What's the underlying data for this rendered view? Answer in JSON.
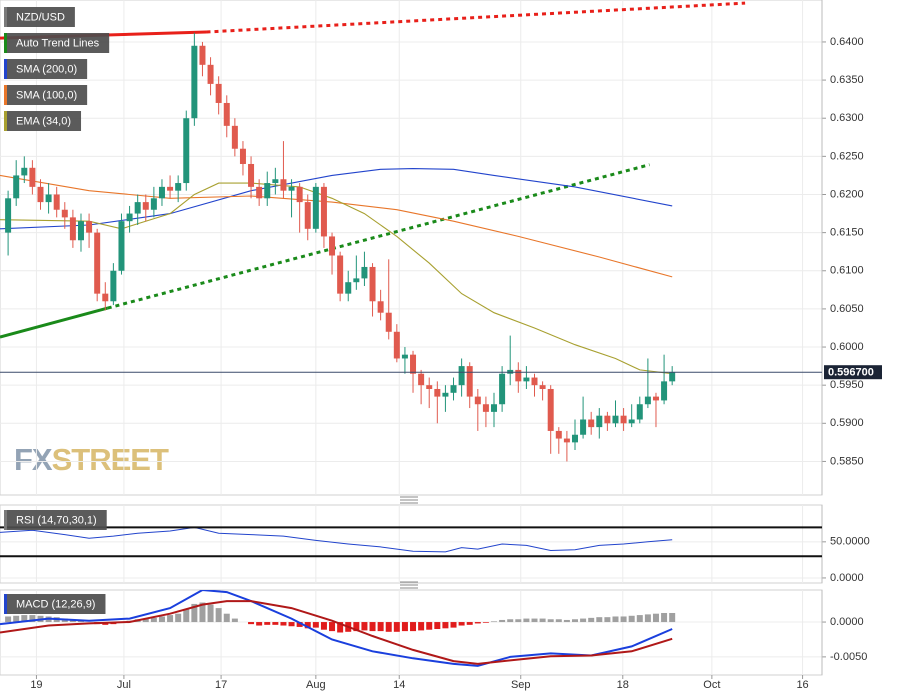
{
  "watermark": [
    "FX",
    "STREET"
  ],
  "chart_data": [
    {
      "type": "candlestick",
      "name": "NZD/USD",
      "legend_color": "#7a7a7a",
      "up_color": "#22947a",
      "down_color": "#e05a4e",
      "open": [
        0.615,
        0.6195,
        0.6225,
        0.6235,
        0.621,
        0.619,
        0.62,
        0.618,
        0.617,
        0.614,
        0.6165,
        0.615,
        0.607,
        0.606,
        0.61,
        0.6165,
        0.6175,
        0.619,
        0.618,
        0.6195,
        0.621,
        0.6205,
        0.6215,
        0.63,
        0.6395,
        0.637,
        0.6345,
        0.632,
        0.629,
        0.626,
        0.624,
        0.621,
        0.6195,
        0.6215,
        0.622,
        0.6205,
        0.621,
        0.619,
        0.6155,
        0.621,
        0.6145,
        0.612,
        0.607,
        0.6085,
        0.609,
        0.6105,
        0.606,
        0.6045,
        0.602,
        0.5985,
        0.599,
        0.5965,
        0.595,
        0.5945,
        0.5935,
        0.594,
        0.595,
        0.5975,
        0.5935,
        0.5925,
        0.5915,
        0.5925,
        0.5965,
        0.597,
        0.5955,
        0.596,
        0.595,
        0.5945,
        0.589,
        0.588,
        0.5875,
        0.5885,
        0.5905,
        0.5895,
        0.591,
        0.59,
        0.591,
        0.59,
        0.5905,
        0.5925,
        0.5935,
        0.593,
        0.5955
      ],
      "high": [
        0.6205,
        0.6245,
        0.625,
        0.6245,
        0.622,
        0.6215,
        0.621,
        0.619,
        0.618,
        0.6175,
        0.6175,
        0.6155,
        0.6085,
        0.611,
        0.6175,
        0.6185,
        0.62,
        0.62,
        0.621,
        0.622,
        0.6225,
        0.6225,
        0.631,
        0.6412,
        0.64,
        0.638,
        0.6355,
        0.633,
        0.63,
        0.627,
        0.625,
        0.622,
        0.623,
        0.6235,
        0.627,
        0.622,
        0.6215,
        0.62,
        0.6215,
        0.6215,
        0.615,
        0.6125,
        0.61,
        0.612,
        0.6125,
        0.611,
        0.6075,
        0.6115,
        0.603,
        0.6,
        0.5995,
        0.597,
        0.596,
        0.5955,
        0.595,
        0.596,
        0.5985,
        0.598,
        0.5945,
        0.5935,
        0.594,
        0.5975,
        0.6015,
        0.598,
        0.5975,
        0.5965,
        0.5955,
        0.595,
        0.5895,
        0.589,
        0.5905,
        0.5935,
        0.5915,
        0.592,
        0.5915,
        0.593,
        0.592,
        0.5925,
        0.5935,
        0.5985,
        0.594,
        0.599,
        0.5975
      ],
      "low": [
        0.612,
        0.6185,
        0.6215,
        0.62,
        0.618,
        0.6175,
        0.617,
        0.6155,
        0.613,
        0.6125,
        0.613,
        0.606,
        0.6048,
        0.6055,
        0.6095,
        0.615,
        0.616,
        0.6165,
        0.617,
        0.6185,
        0.6195,
        0.619,
        0.6205,
        0.629,
        0.6355,
        0.633,
        0.6305,
        0.6275,
        0.625,
        0.6225,
        0.6195,
        0.6185,
        0.6185,
        0.62,
        0.6195,
        0.617,
        0.615,
        0.614,
        0.615,
        0.613,
        0.6095,
        0.606,
        0.606,
        0.6075,
        0.608,
        0.604,
        0.6035,
        0.601,
        0.598,
        0.5965,
        0.594,
        0.5925,
        0.592,
        0.59,
        0.5915,
        0.593,
        0.5935,
        0.592,
        0.589,
        0.5895,
        0.5895,
        0.5915,
        0.595,
        0.594,
        0.5945,
        0.5935,
        0.593,
        0.586,
        0.586,
        0.585,
        0.5865,
        0.588,
        0.5885,
        0.588,
        0.589,
        0.5895,
        0.589,
        0.5895,
        0.59,
        0.592,
        0.5895,
        0.5925,
        0.595
      ],
      "close": [
        0.6195,
        0.6225,
        0.6235,
        0.621,
        0.619,
        0.62,
        0.618,
        0.617,
        0.614,
        0.6165,
        0.615,
        0.607,
        0.606,
        0.61,
        0.6165,
        0.6175,
        0.619,
        0.618,
        0.6195,
        0.621,
        0.6205,
        0.6215,
        0.63,
        0.6395,
        0.637,
        0.6345,
        0.632,
        0.629,
        0.626,
        0.624,
        0.621,
        0.6195,
        0.6215,
        0.622,
        0.6205,
        0.621,
        0.619,
        0.6155,
        0.621,
        0.6145,
        0.612,
        0.607,
        0.6085,
        0.609,
        0.6105,
        0.606,
        0.6045,
        0.602,
        0.5985,
        0.599,
        0.5965,
        0.595,
        0.5945,
        0.5935,
        0.594,
        0.595,
        0.5975,
        0.5935,
        0.5925,
        0.5915,
        0.5925,
        0.5965,
        0.597,
        0.5955,
        0.596,
        0.595,
        0.5945,
        0.589,
        0.588,
        0.5875,
        0.5885,
        0.5905,
        0.5895,
        0.591,
        0.59,
        0.591,
        0.59,
        0.5905,
        0.5925,
        0.5935,
        0.593,
        0.5955,
        0.5967
      ],
      "trend_lines": {
        "name": "Auto Trend Lines",
        "legend_color": "#1a8a1a",
        "lines": [
          {
            "color": "#e8201a",
            "segments": [
              {
                "style": "solid",
                "x": [
                  -1,
                  24.5
                ],
                "values": [
                  0.6405,
                  0.6413
                ]
              },
              {
                "style": "dotted",
                "x": [
                  24.5,
                  91
                ],
                "values": [
                  0.6413,
                  0.6451
                ]
              }
            ]
          },
          {
            "color": "#1a8a1a",
            "segments": [
              {
                "style": "solid",
                "x": [
                  -1,
                  12.3
                ],
                "values": [
                  0.6013,
                  0.6051
                ]
              },
              {
                "style": "dotted",
                "x": [
                  12.3,
                  79.2
                ],
                "values": [
                  0.6051,
                  0.6239
                ]
              }
            ]
          }
        ]
      },
      "series": [
        {
          "name": "SMA (200,0)",
          "color": "#2244cc",
          "x": [
            -1,
            10,
            20,
            30,
            40,
            46,
            50,
            55,
            60,
            70,
            82
          ],
          "values": [
            0.6155,
            0.616,
            0.6175,
            0.6205,
            0.6225,
            0.6233,
            0.6234,
            0.6233,
            0.6225,
            0.621,
            0.6185
          ]
        },
        {
          "name": "SMA (100,0)",
          "color": "#e8762a",
          "x": [
            -1,
            10,
            20,
            30,
            40,
            48,
            55,
            63,
            73,
            82
          ],
          "values": [
            0.6225,
            0.6205,
            0.6195,
            0.6198,
            0.619,
            0.618,
            0.6165,
            0.6145,
            0.6118,
            0.6092
          ]
        },
        {
          "name": "EMA (34,0)",
          "color": "#a8a030",
          "x": [
            -1,
            10,
            14,
            20,
            23,
            26,
            30,
            36,
            40,
            44,
            48,
            52,
            56,
            60,
            65,
            70,
            75,
            78,
            82
          ],
          "values": [
            0.6167,
            0.6165,
            0.6155,
            0.6175,
            0.62,
            0.6215,
            0.6215,
            0.621,
            0.6195,
            0.6175,
            0.6145,
            0.611,
            0.607,
            0.6045,
            0.6025,
            0.6003,
            0.5985,
            0.597,
            0.5965
          ]
        }
      ],
      "last_price": {
        "value": 0.5967,
        "label": "0.596700"
      },
      "xlim": [
        -1,
        100.5
      ],
      "ylim": [
        0.5806,
        0.6455
      ],
      "grid": true,
      "yticks": [
        {
          "value": 0.64,
          "label": "0.6400"
        },
        {
          "value": 0.635,
          "label": "0.6350"
        },
        {
          "value": 0.63,
          "label": "0.6300"
        },
        {
          "value": 0.625,
          "label": "0.6250"
        },
        {
          "value": 0.62,
          "label": "0.6200"
        },
        {
          "value": 0.615,
          "label": "0.6150"
        },
        {
          "value": 0.61,
          "label": "0.6100"
        },
        {
          "value": 0.605,
          "label": "0.6050"
        },
        {
          "value": 0.6,
          "label": "0.6000"
        },
        {
          "value": 0.595,
          "label": "0.5950"
        },
        {
          "value": 0.59,
          "label": "0.5900"
        },
        {
          "value": 0.585,
          "label": "0.5850"
        }
      ]
    },
    {
      "type": "rsi",
      "name": "RSI (14,70,30,1)",
      "legend_color": "#7a7a7a",
      "series": [
        {
          "color": "#2244cc",
          "x": [
            -1,
            3,
            7,
            10,
            13,
            16,
            20,
            23,
            26,
            30,
            34,
            38,
            42,
            46,
            50,
            54,
            56,
            58,
            61,
            64,
            67,
            70,
            73,
            76,
            79,
            82
          ],
          "values": [
            63,
            66,
            60,
            55,
            58,
            62,
            65,
            70,
            62,
            60,
            58,
            52,
            47,
            43,
            37,
            36,
            42,
            40,
            47,
            45,
            38,
            39,
            45,
            47,
            50,
            53
          ]
        }
      ],
      "levels": [
        70,
        30
      ],
      "xlim": [
        -1,
        100.5
      ],
      "ylim": [
        -7,
        101
      ],
      "grid": true,
      "yticks": [
        {
          "value": 50,
          "label": "50.0000"
        },
        {
          "value": 0,
          "label": "0.0000"
        }
      ]
    },
    {
      "type": "macd",
      "name": "MACD (12,26,9)",
      "legend_color": "#2244cc",
      "histogram": {
        "pos_color": "#a0a0a0",
        "neg_color": "#e01c1c",
        "values": [
          0.0008,
          0.0009,
          0.001,
          0.001,
          0.0009,
          0.0008,
          0.0007,
          0.0005,
          0.0003,
          0.0002,
          0.0,
          -0.0003,
          -0.0004,
          -0.0003,
          -0.0001,
          0.0002,
          0.0004,
          0.0005,
          0.0006,
          0.0008,
          0.001,
          0.0012,
          0.0018,
          0.0026,
          0.0028,
          0.0025,
          0.002,
          0.0012,
          0.0005,
          0.0,
          -0.0003,
          -0.0005,
          -0.0004,
          -0.0004,
          -0.0005,
          -0.0006,
          -0.0007,
          -0.0009,
          -0.0008,
          -0.0011,
          -0.0013,
          -0.0015,
          -0.0014,
          -0.0013,
          -0.0012,
          -0.0013,
          -0.0013,
          -0.0014,
          -0.0014,
          -0.0013,
          -0.0013,
          -0.0012,
          -0.0011,
          -0.001,
          -0.0009,
          -0.0008,
          -0.0005,
          -0.0004,
          -0.0002,
          -0.0001,
          0.0001,
          0.0003,
          0.0004,
          0.0004,
          0.0005,
          0.0005,
          0.0005,
          0.0004,
          0.0004,
          0.0003,
          0.0004,
          0.0005,
          0.0006,
          0.0007,
          0.0007,
          0.0008,
          0.0008,
          0.0009,
          0.001,
          0.0011,
          0.0012,
          0.0013,
          0.0013
        ]
      },
      "series": [
        {
          "color": "#1a3fdd",
          "x": [
            -1,
            5,
            10,
            15,
            20,
            24,
            27,
            30,
            35,
            40,
            45,
            50,
            55,
            58,
            62,
            67,
            72,
            77,
            82
          ],
          "values": [
            -0.0003,
            0.0005,
            0.0002,
            0.0005,
            0.002,
            0.0046,
            0.0043,
            0.003,
            0.0005,
            -0.0025,
            -0.0042,
            -0.0052,
            -0.006,
            -0.0063,
            -0.005,
            -0.0045,
            -0.0048,
            -0.0035,
            -0.001
          ]
        },
        {
          "color": "#b01818",
          "x": [
            -1,
            5,
            10,
            15,
            20,
            24,
            27,
            30,
            35,
            40,
            45,
            50,
            55,
            58,
            62,
            67,
            72,
            77,
            82
          ],
          "values": [
            -0.0015,
            -0.0005,
            -0.0002,
            0.0,
            0.0012,
            0.0025,
            0.003,
            0.003,
            0.002,
            0.0002,
            -0.002,
            -0.004,
            -0.0056,
            -0.006,
            -0.0055,
            -0.0049,
            -0.0048,
            -0.0042,
            -0.0024
          ]
        }
      ],
      "xlim": [
        -1,
        100.5
      ],
      "ylim": [
        -0.0076,
        0.0046
      ],
      "grid": true,
      "yticks": [
        {
          "value": 0,
          "label": "0.0000"
        },
        {
          "value": -0.005,
          "label": "-0.0050"
        }
      ],
      "xticks": [
        {
          "value": 3.5,
          "label": "19"
        },
        {
          "value": 14.3,
          "label": "Jul"
        },
        {
          "value": 26.3,
          "label": "17"
        },
        {
          "value": 38,
          "label": "Aug"
        },
        {
          "value": 48.3,
          "label": "14"
        },
        {
          "value": 63.3,
          "label": "Sep"
        },
        {
          "value": 75.9,
          "label": "18"
        },
        {
          "value": 86.9,
          "label": "Oct"
        },
        {
          "value": 98.1,
          "label": "16"
        }
      ]
    }
  ]
}
